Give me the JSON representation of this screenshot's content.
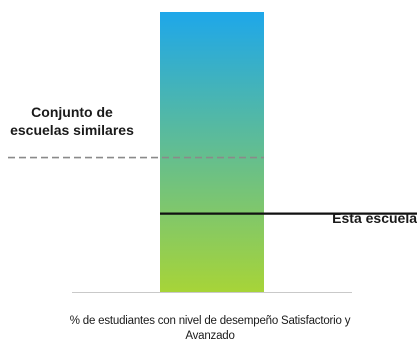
{
  "chart_data": {
    "type": "bar",
    "categories": [
      ""
    ],
    "values": [
      100
    ],
    "ylim": [
      0,
      100
    ],
    "xlabel": "% de estudiantes con nivel de desempeño Satisfactorio y Avanzado",
    "gradient": {
      "top_color": "#1ea7ea",
      "bottom_color": "#a7d438"
    },
    "reference_lines": [
      {
        "name": "group",
        "label": "Conjunto de escuelas similares",
        "value": 48,
        "style": "dashed",
        "color": "#8a8a8a"
      },
      {
        "name": "school",
        "label": "Esta escuela",
        "value": 28,
        "style": "solid",
        "color": "#111111"
      }
    ],
    "grid": false,
    "axis_line_color": "#c9c9c9"
  }
}
